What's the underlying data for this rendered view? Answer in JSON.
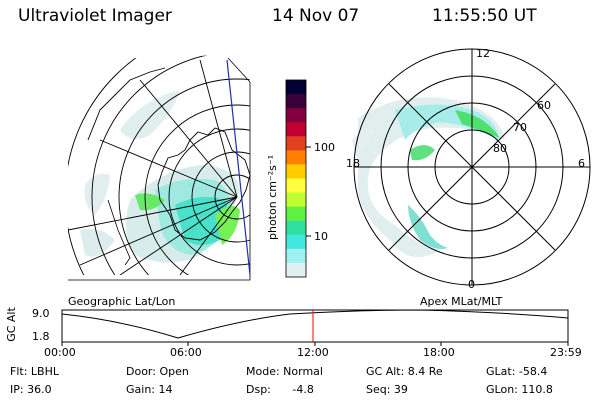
{
  "header": {
    "instrument": "Ultraviolet Imager",
    "date": "14 Nov 07",
    "time": "11:55:50 UT"
  },
  "colorbar": {
    "unit_label": "photon cm⁻²s⁻¹",
    "ticks": [
      "100",
      "10"
    ],
    "colors": [
      "#000033",
      "#3a003a",
      "#800040",
      "#c00030",
      "#e04020",
      "#ff7f00",
      "#ffcc00",
      "#ffff40",
      "#c0ff30",
      "#60f040",
      "#30e0a0",
      "#40e8e0",
      "#a0f0f0",
      "#e0f0f0"
    ]
  },
  "geo_panel": {
    "label": "Geographic Lat/Lon"
  },
  "polar_panel": {
    "label": "Apex MLat/MLT",
    "mlt_labels": {
      "top": "12",
      "left": "18",
      "right": "6",
      "bottom": "0"
    },
    "lat_labels": [
      "60",
      "70",
      "80"
    ]
  },
  "timeline": {
    "ylabel": "GC Alt",
    "y_ticks": [
      "9.0",
      "1.8"
    ],
    "x_ticks": [
      "00:00",
      "06:00",
      "12:00",
      "18:00",
      "23:59"
    ],
    "marker_color": "#ff0000"
  },
  "status": {
    "filter": "Flt: LBHL",
    "ip": "IP: 36.0",
    "door": "Door: Open",
    "gain": "Gain: 14",
    "mode": "Mode: Normal",
    "dsp_label": "Dsp:",
    "dsp_value": "-4.8",
    "gc_alt": "GC Alt: 8.4 Re",
    "seq": "Seq: 39",
    "glat": "GLat: -58.4",
    "glon": "GLon: 110.8"
  }
}
